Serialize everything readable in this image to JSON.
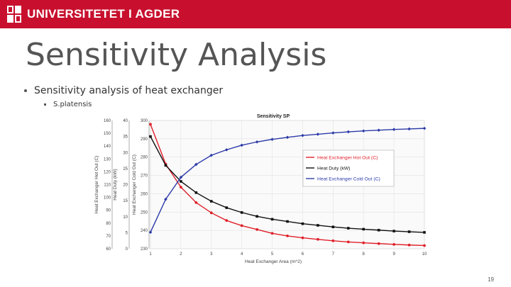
{
  "header": {
    "logo_text": "UNIVERSITETET I AGDER",
    "bar_color": "#c8102e"
  },
  "slide": {
    "title": "Sensitivity Analysis",
    "bullets": [
      {
        "text": "Sensitivity analysis of heat exchanger"
      }
    ],
    "sub_bullets": [
      {
        "text": "S.platensis"
      }
    ],
    "page_number": "19"
  },
  "chart_data": {
    "type": "line",
    "title": "Sensitivity SP",
    "xlabel": "Heat Exchanger Area (m^2)",
    "x": [
      1,
      1.5,
      2,
      2.5,
      3,
      3.5,
      4,
      4.5,
      5,
      5.5,
      6,
      6.5,
      7,
      7.5,
      8,
      8.5,
      9,
      9.5,
      10
    ],
    "xticks": [
      1,
      2,
      3,
      4,
      5,
      6,
      7,
      8,
      9,
      10
    ],
    "axes": [
      {
        "label": "Heat Exchanger Hot Out (C)",
        "ticks": [
          60,
          70,
          80,
          90,
          100,
          110,
          120,
          130,
          140,
          150,
          160
        ],
        "ylim": [
          60,
          160
        ]
      },
      {
        "label": "Heat Duty (kW)",
        "ticks": [
          0,
          5,
          10,
          15,
          20,
          25,
          30,
          35,
          40
        ],
        "ylim": [
          0,
          40
        ]
      },
      {
        "label": "Heat Exchanger Cold Out (C)",
        "ticks": [
          230,
          240,
          250,
          260,
          270,
          280,
          290,
          300
        ],
        "ylim": [
          230,
          300
        ]
      }
    ],
    "series": [
      {
        "name": "Heat Exchanger Hot Out (C)",
        "color": "#e0202a",
        "axis": 0,
        "values": [
          157,
          126,
          108,
          96,
          88,
          82,
          78,
          75,
          72,
          70,
          68.5,
          67.3,
          66.2,
          65.3,
          64.6,
          64,
          63.4,
          62.9,
          62.5
        ]
      },
      {
        "name": "Heat Duty (kW)",
        "color": "#111111",
        "axis": 1,
        "values": [
          35,
          26,
          21,
          17.5,
          14.8,
          12.8,
          11.3,
          10.1,
          9.2,
          8.5,
          7.8,
          7.3,
          6.8,
          6.4,
          6.1,
          5.8,
          5.5,
          5.3,
          5.1
        ]
      },
      {
        "name": "Heat Exchanger Cold Out (C)",
        "color": "#2b3aa8",
        "axis": 2,
        "values": [
          239,
          257,
          269,
          276,
          281,
          284,
          286.5,
          288.3,
          289.7,
          290.8,
          291.8,
          292.5,
          293.2,
          293.8,
          294.3,
          294.7,
          295.1,
          295.4,
          295.7
        ]
      }
    ],
    "grid": true,
    "legend_position": "right"
  }
}
